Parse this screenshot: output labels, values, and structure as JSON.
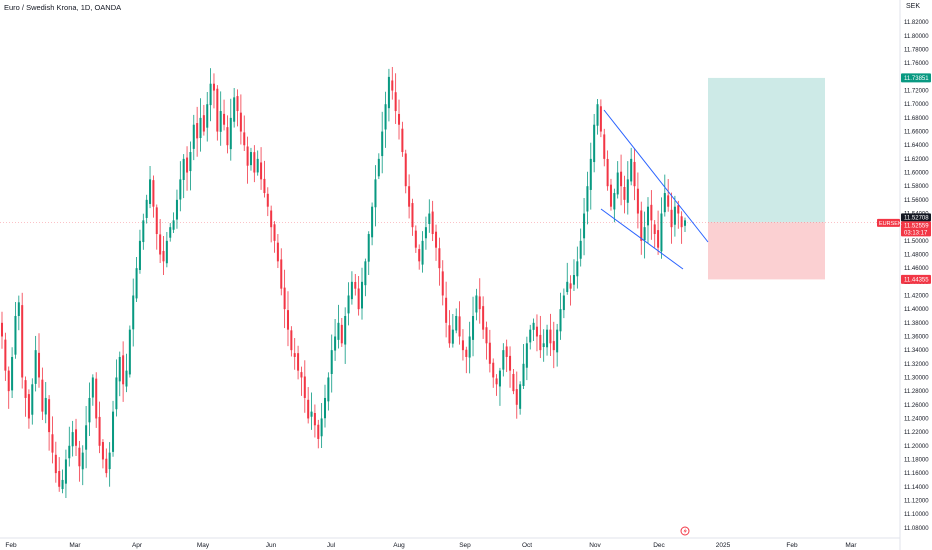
{
  "header": {
    "title": "Euro / Swedish Krona, 1D, OANDA",
    "currency": "SEK"
  },
  "colors": {
    "up": "#089981",
    "down": "#f23645",
    "trendline": "#2962ff",
    "target_zone": "#cdeae7",
    "stop_zone": "#fbd0d2",
    "target_tag": "#089981",
    "stop_tag": "#f23645",
    "price_tag": "#131722"
  },
  "price_axis": {
    "ticks": [
      "11.82000",
      "11.80000",
      "11.78000",
      "11.76000",
      "11.74000",
      "11.72000",
      "11.70000",
      "11.68000",
      "11.66000",
      "11.64000",
      "11.62000",
      "11.60000",
      "11.58000",
      "11.56000",
      "11.54000",
      "11.52000",
      "11.50000",
      "11.48000",
      "11.46000",
      "11.44000",
      "11.42000",
      "11.40000",
      "11.38000",
      "11.36000",
      "11.34000",
      "11.32000",
      "11.30000",
      "11.28000",
      "11.26000",
      "11.24000",
      "11.22000",
      "11.20000",
      "11.18000",
      "11.16000",
      "11.14000",
      "11.12000",
      "11.10000",
      "11.08000"
    ],
    "target_tag": "11.73851",
    "entry_tag": "11.52708",
    "stop_tag": "11.44355",
    "symbol_tag": "EURSEK",
    "last_price": "11.52559",
    "countdown": "03:13:17"
  },
  "time_axis": {
    "labels": [
      "Feb",
      "Mar",
      "Apr",
      "May",
      "Jun",
      "Jul",
      "Aug",
      "Sep",
      "Oct",
      "Nov",
      "Dec",
      "2025",
      "Feb",
      "Mar"
    ]
  },
  "chart_data": {
    "type": "candlestick",
    "symbol": "EURSEK",
    "interval": "1D",
    "ylim": [
      11.065,
      11.835
    ],
    "grid": false,
    "position_tool": {
      "type": "long",
      "entry": 11.52708,
      "target": 11.73851,
      "stop": 11.44355
    },
    "closes": [
      11.36,
      11.31,
      11.28,
      11.33,
      11.39,
      11.41,
      11.3,
      11.27,
      11.24,
      11.29,
      11.34,
      11.3,
      11.25,
      11.27,
      11.22,
      11.19,
      11.16,
      11.14,
      11.15,
      11.18,
      11.2,
      11.22,
      11.2,
      11.17,
      11.19,
      11.23,
      11.27,
      11.3,
      11.24,
      11.2,
      11.18,
      11.16,
      11.19,
      11.25,
      11.3,
      11.33,
      11.29,
      11.31,
      11.37,
      11.42,
      11.46,
      11.5,
      11.53,
      11.56,
      11.59,
      11.55,
      11.51,
      11.48,
      11.47,
      11.5,
      11.52,
      11.53,
      11.56,
      11.59,
      11.62,
      11.6,
      11.63,
      11.67,
      11.65,
      11.68,
      11.66,
      11.7,
      11.73,
      11.72,
      11.66,
      11.69,
      11.67,
      11.64,
      11.68,
      11.71,
      11.69,
      11.66,
      11.64,
      11.61,
      11.63,
      11.6,
      11.62,
      11.59,
      11.57,
      11.55,
      11.52,
      11.5,
      11.47,
      11.43,
      11.4,
      11.37,
      11.34,
      11.33,
      11.31,
      11.3,
      11.27,
      11.24,
      11.25,
      11.23,
      11.21,
      11.24,
      11.27,
      11.3,
      11.34,
      11.36,
      11.38,
      11.35,
      11.39,
      11.42,
      11.44,
      11.43,
      11.4,
      11.44,
      11.47,
      11.51,
      11.55,
      11.59,
      11.62,
      11.66,
      11.7,
      11.74,
      11.72,
      11.69,
      11.67,
      11.63,
      11.58,
      11.55,
      11.52,
      11.49,
      11.47,
      11.5,
      11.52,
      11.54,
      11.51,
      11.49,
      11.46,
      11.42,
      11.38,
      11.35,
      11.37,
      11.39,
      11.36,
      11.34,
      11.33,
      11.36,
      11.39,
      11.42,
      11.4,
      11.37,
      11.35,
      11.32,
      11.3,
      11.29,
      11.31,
      11.34,
      11.33,
      11.31,
      11.28,
      11.26,
      11.29,
      11.32,
      11.35,
      11.37,
      11.38,
      11.36,
      11.34,
      11.35,
      11.37,
      11.35,
      11.34,
      11.37,
      11.4,
      11.42,
      11.44,
      11.43,
      11.45,
      11.47,
      11.5,
      11.54,
      11.58,
      11.62,
      11.67,
      11.7,
      11.66,
      11.62,
      11.58,
      11.55,
      11.57,
      11.6,
      11.58,
      11.56,
      11.59,
      11.62,
      11.58,
      11.54,
      11.5,
      11.52,
      11.55,
      11.53,
      11.51,
      11.49,
      11.54,
      11.57,
      11.55,
      11.52,
      11.55,
      11.54,
      11.52,
      11.53
    ]
  }
}
